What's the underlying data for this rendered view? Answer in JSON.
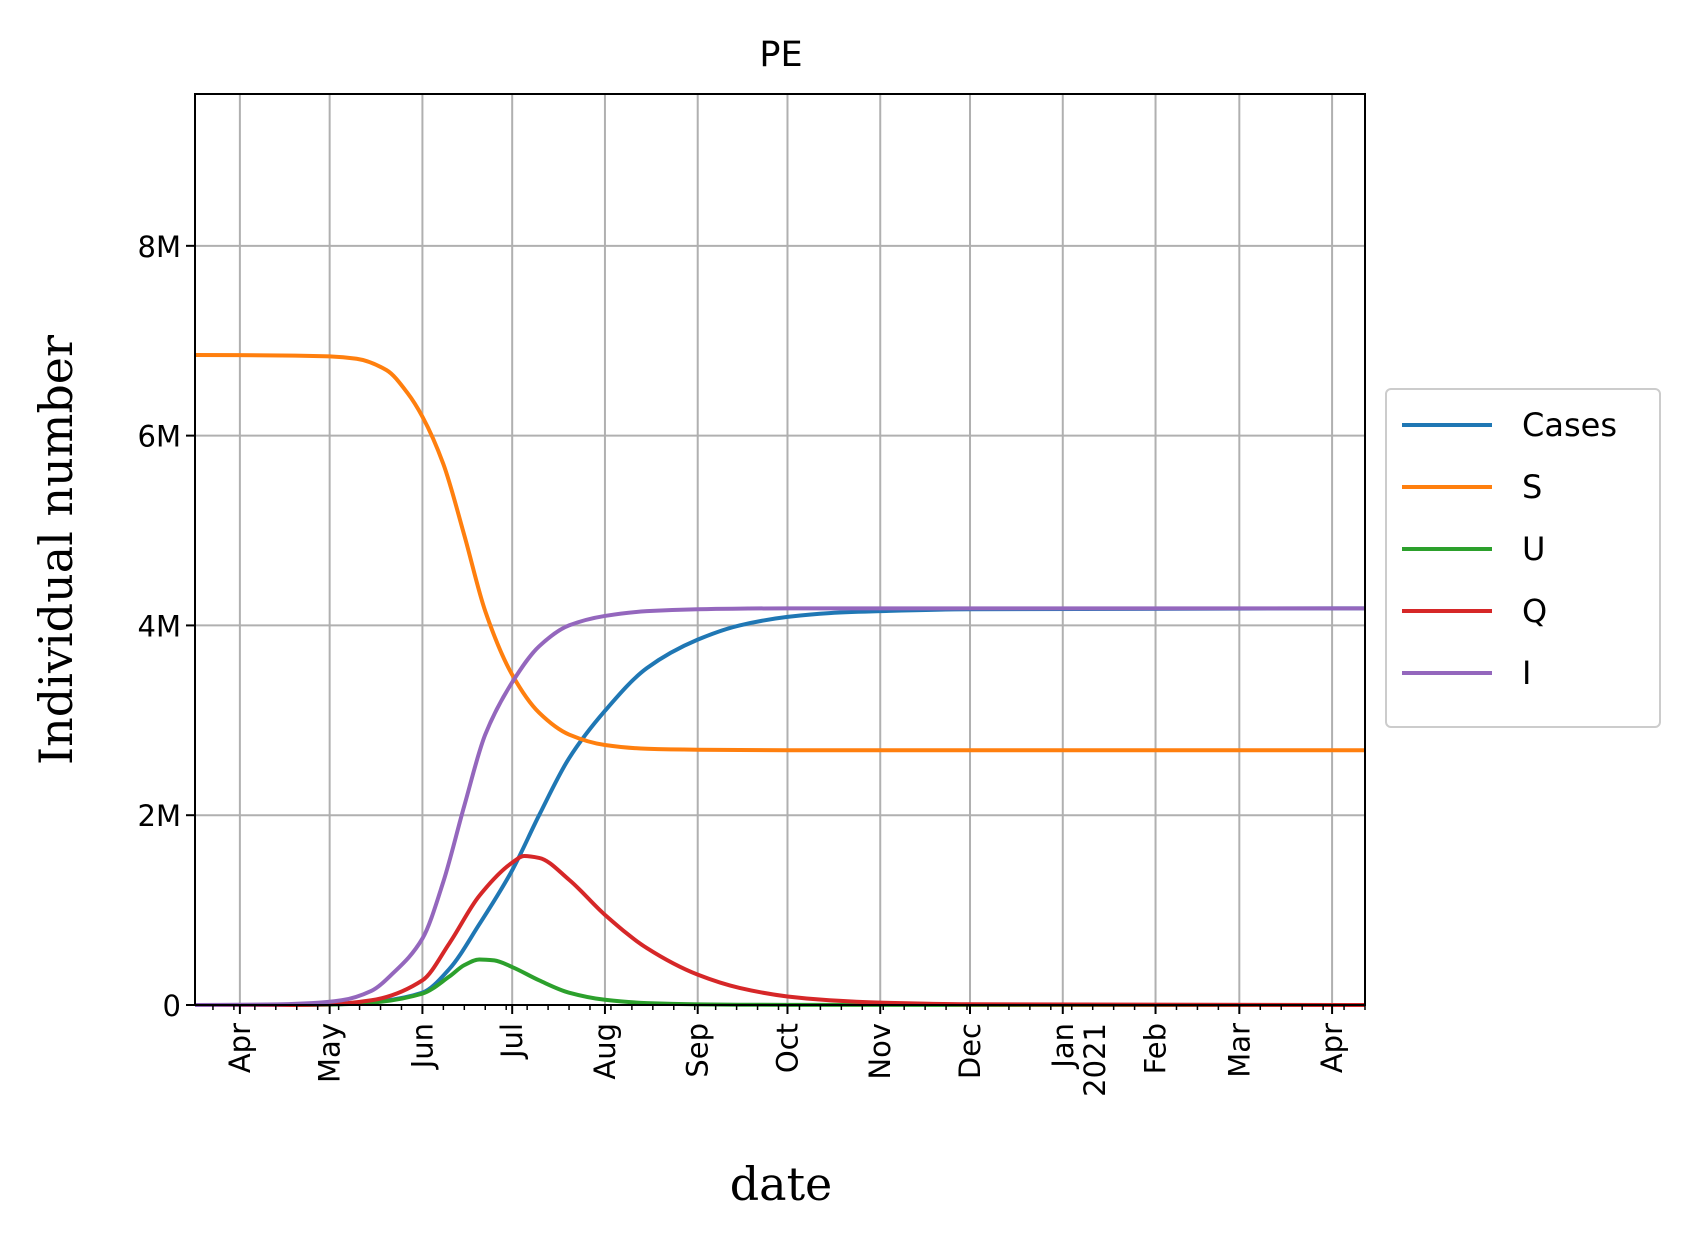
{
  "chart_data": {
    "type": "line",
    "title": "PE",
    "xlabel": "date",
    "ylabel": "Individual number",
    "grid": true,
    "legend_position": "right-outside",
    "xlim": [
      "2020-03-17",
      "2021-04-12"
    ],
    "ylim": [
      0,
      9600000
    ],
    "x_ticks": [
      {
        "date": "2020-04-01",
        "label": "Apr"
      },
      {
        "date": "2020-05-01",
        "label": "May"
      },
      {
        "date": "2020-06-01",
        "label": "Jun"
      },
      {
        "date": "2020-07-01",
        "label": "Jul"
      },
      {
        "date": "2020-08-01",
        "label": "Aug"
      },
      {
        "date": "2020-09-01",
        "label": "Sep"
      },
      {
        "date": "2020-10-01",
        "label": "Oct"
      },
      {
        "date": "2020-11-01",
        "label": "Nov"
      },
      {
        "date": "2020-12-01",
        "label": "Dec"
      },
      {
        "date": "2021-01-01",
        "label": "Jan\n2021"
      },
      {
        "date": "2021-02-01",
        "label": "Feb"
      },
      {
        "date": "2021-03-01",
        "label": "Mar"
      },
      {
        "date": "2021-04-01",
        "label": "Apr"
      }
    ],
    "y_ticks": [
      {
        "value": 0,
        "label": "0"
      },
      {
        "value": 2000000,
        "label": "2M"
      },
      {
        "value": 4000000,
        "label": "4M"
      },
      {
        "value": 6000000,
        "label": "6M"
      },
      {
        "value": 8000000,
        "label": "8M"
      }
    ],
    "series": [
      {
        "name": "Cases",
        "color": "#1f77b4",
        "points": [
          [
            "2020-03-17",
            0
          ],
          [
            "2020-04-15",
            0
          ],
          [
            "2020-05-01",
            5000
          ],
          [
            "2020-05-15",
            30000
          ],
          [
            "2020-06-01",
            130000
          ],
          [
            "2020-06-10",
            380000
          ],
          [
            "2020-06-20",
            850000
          ],
          [
            "2020-07-01",
            1420000
          ],
          [
            "2020-07-10",
            2000000
          ],
          [
            "2020-07-20",
            2600000
          ],
          [
            "2020-08-01",
            3100000
          ],
          [
            "2020-08-15",
            3550000
          ],
          [
            "2020-09-01",
            3850000
          ],
          [
            "2020-09-15",
            4000000
          ],
          [
            "2020-10-01",
            4090000
          ],
          [
            "2020-10-15",
            4130000
          ],
          [
            "2020-11-01",
            4150000
          ],
          [
            "2020-12-01",
            4170000
          ],
          [
            "2021-04-12",
            4180000
          ]
        ]
      },
      {
        "name": "S",
        "color": "#ff7f0e",
        "points": [
          [
            "2020-03-17",
            6850000
          ],
          [
            "2020-04-15",
            6845000
          ],
          [
            "2020-05-01",
            6835000
          ],
          [
            "2020-05-10",
            6810000
          ],
          [
            "2020-05-20",
            6690000
          ],
          [
            "2020-05-27",
            6450000
          ],
          [
            "2020-06-01",
            6200000
          ],
          [
            "2020-06-08",
            5700000
          ],
          [
            "2020-06-15",
            4950000
          ],
          [
            "2020-06-22",
            4150000
          ],
          [
            "2020-07-01",
            3480000
          ],
          [
            "2020-07-10",
            3080000
          ],
          [
            "2020-07-20",
            2850000
          ],
          [
            "2020-08-01",
            2740000
          ],
          [
            "2020-08-15",
            2700000
          ],
          [
            "2020-09-01",
            2690000
          ],
          [
            "2020-10-01",
            2685000
          ],
          [
            "2021-04-12",
            2685000
          ]
        ]
      },
      {
        "name": "U",
        "color": "#2ca02c",
        "points": [
          [
            "2020-03-17",
            0
          ],
          [
            "2020-04-15",
            0
          ],
          [
            "2020-05-01",
            4000
          ],
          [
            "2020-05-15",
            25000
          ],
          [
            "2020-06-01",
            120000
          ],
          [
            "2020-06-10",
            300000
          ],
          [
            "2020-06-15",
            420000
          ],
          [
            "2020-06-20",
            480000
          ],
          [
            "2020-06-25",
            470000
          ],
          [
            "2020-07-01",
            400000
          ],
          [
            "2020-07-10",
            260000
          ],
          [
            "2020-07-20",
            130000
          ],
          [
            "2020-08-01",
            55000
          ],
          [
            "2020-08-15",
            20000
          ],
          [
            "2020-09-01",
            7000
          ],
          [
            "2020-10-01",
            1000
          ],
          [
            "2021-04-12",
            0
          ]
        ]
      },
      {
        "name": "Q",
        "color": "#d62728",
        "points": [
          [
            "2020-03-17",
            0
          ],
          [
            "2020-04-15",
            0
          ],
          [
            "2020-05-01",
            8000
          ],
          [
            "2020-05-15",
            50000
          ],
          [
            "2020-06-01",
            260000
          ],
          [
            "2020-06-10",
            650000
          ],
          [
            "2020-06-20",
            1150000
          ],
          [
            "2020-07-01",
            1500000
          ],
          [
            "2020-07-05",
            1570000
          ],
          [
            "2020-07-10",
            1550000
          ],
          [
            "2020-07-20",
            1320000
          ],
          [
            "2020-08-01",
            950000
          ],
          [
            "2020-08-15",
            600000
          ],
          [
            "2020-09-01",
            320000
          ],
          [
            "2020-09-15",
            180000
          ],
          [
            "2020-10-01",
            90000
          ],
          [
            "2020-10-15",
            50000
          ],
          [
            "2020-11-01",
            25000
          ],
          [
            "2020-12-01",
            8000
          ],
          [
            "2021-04-12",
            0
          ]
        ]
      },
      {
        "name": "I",
        "color": "#9467bd",
        "points": [
          [
            "2020-03-17",
            0
          ],
          [
            "2020-04-10",
            5000
          ],
          [
            "2020-04-25",
            20000
          ],
          [
            "2020-05-05",
            50000
          ],
          [
            "2020-05-15",
            150000
          ],
          [
            "2020-05-22",
            330000
          ],
          [
            "2020-06-01",
            700000
          ],
          [
            "2020-06-08",
            1300000
          ],
          [
            "2020-06-15",
            2100000
          ],
          [
            "2020-06-22",
            2850000
          ],
          [
            "2020-07-01",
            3400000
          ],
          [
            "2020-07-10",
            3780000
          ],
          [
            "2020-07-20",
            4000000
          ],
          [
            "2020-08-01",
            4100000
          ],
          [
            "2020-08-15",
            4150000
          ],
          [
            "2020-09-01",
            4170000
          ],
          [
            "2020-10-01",
            4180000
          ],
          [
            "2021-04-12",
            4180000
          ]
        ]
      }
    ]
  }
}
